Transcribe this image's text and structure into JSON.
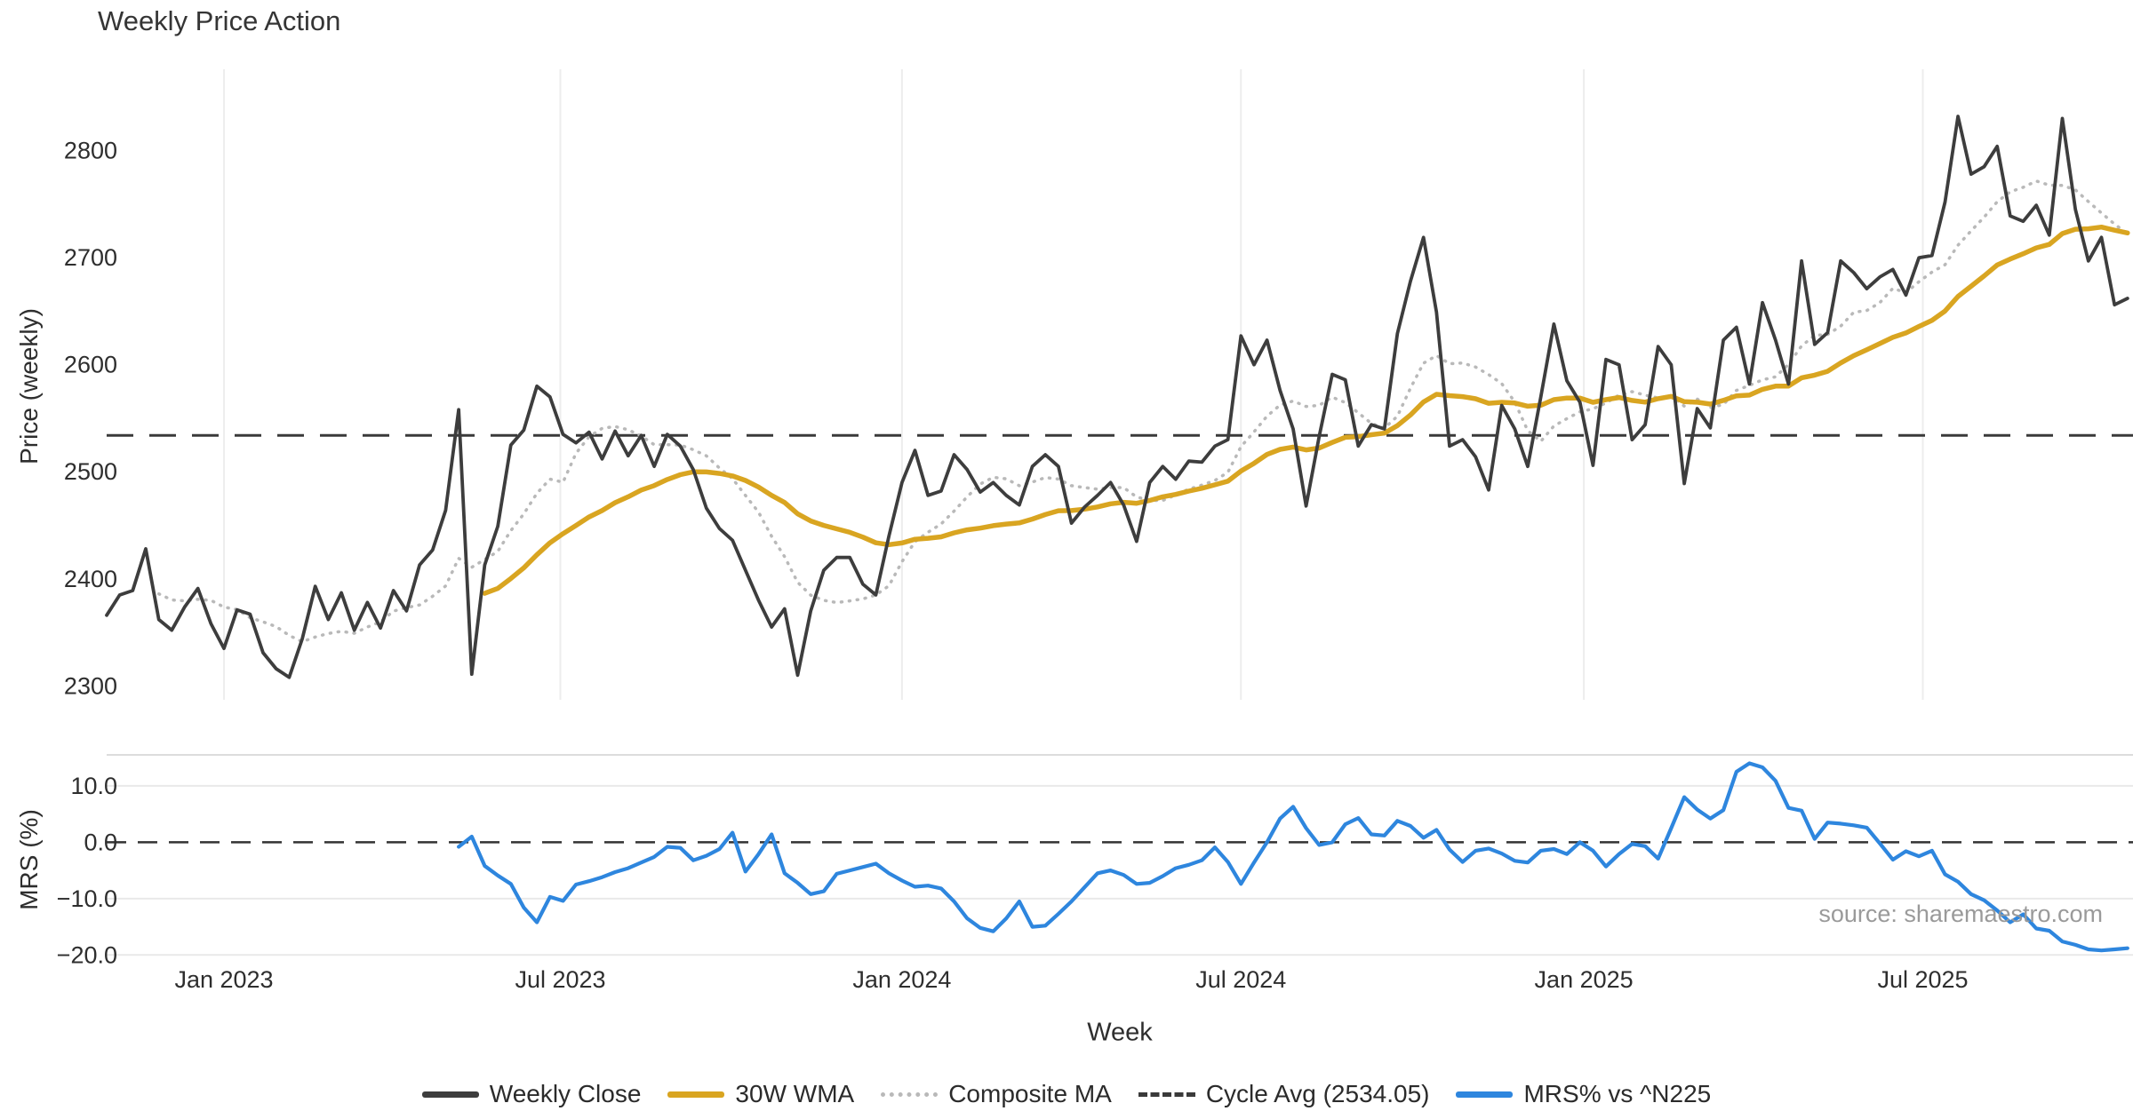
{
  "chart_data": {
    "type": "line",
    "title": "Weekly Price Action",
    "xlabel": "Week",
    "source": "source: sharemaestro.com",
    "weeks_total": 156,
    "x_ticks": [
      {
        "week": 9.0,
        "label": "Jan 2023"
      },
      {
        "week": 34.8,
        "label": "Jul 2023"
      },
      {
        "week": 61.0,
        "label": "Jan 2024"
      },
      {
        "week": 87.0,
        "label": "Jul 2024"
      },
      {
        "week": 113.3,
        "label": "Jan 2025"
      },
      {
        "week": 139.3,
        "label": "Jul 2025"
      }
    ],
    "colors": {
      "close": "#3d3d3d",
      "wma": "#d9a521",
      "composite": "#b9b9b9",
      "cycle": "#3a3a3a",
      "mrs": "#2e86de",
      "grid": "#ededed",
      "panel_border": "#dcdcdc",
      "zero_line": "#333333"
    },
    "panels": [
      {
        "name": "price",
        "ylabel": "Price (weekly)",
        "ylim": [
          2287,
          2876
        ],
        "yticks": [
          {
            "value": 2300,
            "label": "2300"
          },
          {
            "value": 2400,
            "label": "2400"
          },
          {
            "value": 2500,
            "label": "2500"
          },
          {
            "value": 2600,
            "label": "2600"
          },
          {
            "value": 2700,
            "label": "2700"
          },
          {
            "value": 2800,
            "label": "2800"
          }
        ],
        "cycle_avg": 2534.05,
        "series": [
          {
            "name": "Weekly Close",
            "style": "solid",
            "start_week": 0,
            "values": [
              2366,
              2385,
              2389,
              2428,
              2362,
              2352,
              2374,
              2391,
              2358,
              2335,
              2371,
              2367,
              2331,
              2316,
              2308,
              2344,
              2393,
              2362,
              2387,
              2352,
              2378,
              2354,
              2389,
              2370,
              2413,
              2427,
              2464,
              2558,
              2311,
              2413,
              2449,
              2525,
              2539,
              2580,
              2570,
              2535,
              2527,
              2537,
              2512,
              2538,
              2515,
              2534,
              2505,
              2535,
              2524,
              2502,
              2466,
              2447,
              2436,
              2408,
              2380,
              2355,
              2372,
              2310,
              2370,
              2408,
              2420,
              2420,
              2395,
              2385,
              2440,
              2490,
              2520,
              2478,
              2482,
              2516,
              2502,
              2481,
              2490,
              2478,
              2469,
              2505,
              2516,
              2505,
              2452,
              2467,
              2478,
              2490,
              2469,
              2435,
              2490,
              2505,
              2493,
              2510,
              2509,
              2524,
              2530,
              2627,
              2600,
              2623,
              2576,
              2540,
              2468,
              2533,
              2591,
              2586,
              2524,
              2544,
              2540,
              2629,
              2678,
              2719,
              2649,
              2524,
              2530,
              2514,
              2483,
              2562,
              2540,
              2505,
              2570,
              2638,
              2585,
              2565,
              2506,
              2605,
              2600,
              2530,
              2544,
              2617,
              2600,
              2489,
              2559,
              2541,
              2623,
              2635,
              2582,
              2658,
              2623,
              2582,
              2697,
              2619,
              2630,
              2697,
              2686,
              2671,
              2682,
              2689,
              2665,
              2700,
              2702,
              2752,
              2832,
              2778,
              2785,
              2804,
              2739,
              2734,
              2749,
              2721,
              2830,
              2745,
              2697,
              2719,
              2656,
              2662
            ]
          },
          {
            "name": "30W WMA",
            "style": "solid",
            "derived": "wma30",
            "window": 30
          },
          {
            "name": "Composite MA",
            "style": "dotted",
            "derived": "sma8",
            "window": 8,
            "start_week": 4
          },
          {
            "name": "Cycle Avg",
            "style": "dashed",
            "constant": 2534.05
          }
        ]
      },
      {
        "name": "mrs",
        "ylabel": "MRS (%)",
        "ylim": [
          -22.0,
          15.5
        ],
        "yticks": [
          {
            "value": 10,
            "label": "10.0"
          },
          {
            "value": 0,
            "label": "0.0"
          },
          {
            "value": -10,
            "label": "−10.0"
          },
          {
            "value": -20,
            "label": "−20.0"
          }
        ],
        "zero_line_dashed": true,
        "series": [
          {
            "name": "MRS% vs ^N225",
            "style": "solid",
            "start_week": 27,
            "values": [
              -0.8,
              1.0,
              -4.2,
              -5.9,
              -7.4,
              -11.6,
              -14.2,
              -9.7,
              -10.4,
              -7.5,
              -6.9,
              -6.2,
              -5.3,
              -4.6,
              -3.6,
              -2.6,
              -0.8,
              -1.0,
              -3.2,
              -2.4,
              -1.2,
              1.7,
              -5.2,
              -2.1,
              1.4,
              -5.5,
              -7.2,
              -9.2,
              -8.7,
              -5.6,
              -5.0,
              -4.4,
              -3.8,
              -5.5,
              -6.8,
              -7.9,
              -7.7,
              -8.2,
              -10.5,
              -13.5,
              -15.2,
              -15.8,
              -13.5,
              -10.5,
              -15.0,
              -14.8,
              -12.7,
              -10.5,
              -8.0,
              -5.5,
              -5.0,
              -5.8,
              -7.4,
              -7.2,
              -6.0,
              -4.6,
              -4.0,
              -3.2,
              -0.9,
              -3.5,
              -7.4,
              -3.6,
              0.0,
              4.2,
              6.3,
              2.5,
              -0.5,
              0.0,
              3.2,
              4.3,
              1.4,
              1.2,
              3.8,
              2.9,
              0.8,
              2.2,
              -1.3,
              -3.5,
              -1.5,
              -1.1,
              -2.0,
              -3.3,
              -3.6,
              -1.5,
              -1.2,
              -2.1,
              0.0,
              -1.5,
              -4.3,
              -2.1,
              -0.3,
              -0.7,
              -2.9,
              2.5,
              8.0,
              5.8,
              4.2,
              5.7,
              12.5,
              14.0,
              13.3,
              10.9,
              6.1,
              5.6,
              0.6,
              3.5,
              3.3,
              3.0,
              2.6,
              -0.2,
              -3.1,
              -1.6,
              -2.5,
              -1.5,
              -5.7,
              -7.0,
              -9.2,
              -10.3,
              -12.1,
              -14.2,
              -12.8,
              -15.3,
              -15.7,
              -17.6,
              -18.2,
              -19.0,
              -19.2,
              -19.0,
              -18.8
            ]
          }
        ]
      }
    ],
    "legend": [
      {
        "label": "Weekly Close",
        "swatch": "solid",
        "color": "#3d3d3d"
      },
      {
        "label": "30W WMA",
        "swatch": "solid",
        "color": "#d9a521"
      },
      {
        "label": "Composite MA",
        "swatch": "dotted",
        "color": "#b9b9b9"
      },
      {
        "label": "Cycle Avg (2534.05)",
        "swatch": "dashed",
        "color": "#3a3a3a"
      },
      {
        "label": "MRS% vs ^N225",
        "swatch": "solid",
        "color": "#2e86de"
      }
    ]
  }
}
